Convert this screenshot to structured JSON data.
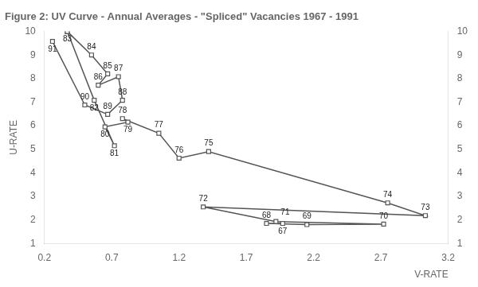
{
  "chart_data": {
    "type": "line",
    "title": "Figure 2: UV Curve - Annual Averages - \"Spliced\" Vacancies 1967 - 1991",
    "ylabel": "U-RATE",
    "xlabel": "V-RATE",
    "xlim": [
      0.2,
      3.2
    ],
    "xticks": [
      0.2,
      0.7,
      1.2,
      1.7,
      2.2,
      2.7,
      3.2
    ],
    "ylim": [
      1,
      10
    ],
    "yticks": [
      1,
      2,
      3,
      4,
      5,
      6,
      7,
      8,
      9,
      10
    ],
    "y2lim": [
      1,
      10
    ],
    "y2ticks": [
      1,
      2,
      3,
      4,
      5,
      6,
      7,
      8,
      9,
      10
    ],
    "grid": false,
    "marker": "square",
    "series": [
      {
        "color": "#555555",
        "x": [
          1.97,
          1.85,
          2.15,
          2.72,
          1.92,
          1.38,
          3.03,
          2.75,
          1.42,
          1.2,
          1.05,
          0.78,
          0.82,
          0.65,
          0.72,
          0.57,
          0.37
        ],
        "values": [
          1.85,
          1.85,
          1.8,
          1.82,
          1.93,
          2.55,
          2.18,
          2.72,
          4.9,
          4.62,
          5.68,
          6.3,
          6.15,
          5.95,
          5.15,
          7.08,
          10.0
        ]
      },
      {
        "color": "#555555",
        "x": [
          0.37,
          0.55,
          0.67,
          0.6,
          0.75,
          0.78,
          0.67,
          0.5,
          0.26
        ],
        "values": [
          10.0,
          9.0,
          8.2,
          7.72,
          8.08,
          7.08,
          6.48,
          6.88,
          9.58
        ]
      }
    ],
    "annotations": [
      {
        "text": "67",
        "x": 1.97,
        "y": 1.85
      },
      {
        "text": "68",
        "x": 1.85,
        "y": 1.85
      },
      {
        "text": "69",
        "x": 2.15,
        "y": 1.8
      },
      {
        "text": "70",
        "x": 2.72,
        "y": 1.82
      },
      {
        "text": "71",
        "x": 1.92,
        "y": 1.93
      },
      {
        "text": "72",
        "x": 1.38,
        "y": 2.55
      },
      {
        "text": "73",
        "x": 3.03,
        "y": 2.18
      },
      {
        "text": "74",
        "x": 2.75,
        "y": 2.72
      },
      {
        "text": "75",
        "x": 1.42,
        "y": 4.9
      },
      {
        "text": "76",
        "x": 1.2,
        "y": 4.62
      },
      {
        "text": "77",
        "x": 1.05,
        "y": 5.68
      },
      {
        "text": "78",
        "x": 0.78,
        "y": 6.3
      },
      {
        "text": "79",
        "x": 0.82,
        "y": 6.15
      },
      {
        "text": "80",
        "x": 0.65,
        "y": 5.95
      },
      {
        "text": "81",
        "x": 0.72,
        "y": 5.15
      },
      {
        "text": "82",
        "x": 0.57,
        "y": 7.08
      },
      {
        "text": "83",
        "x": 0.37,
        "y": 10.0
      },
      {
        "text": "84",
        "x": 0.55,
        "y": 9.0
      },
      {
        "text": "85",
        "x": 0.67,
        "y": 8.2
      },
      {
        "text": "86",
        "x": 0.6,
        "y": 7.72
      },
      {
        "text": "87",
        "x": 0.75,
        "y": 8.08
      },
      {
        "text": "88",
        "x": 0.78,
        "y": 7.08
      },
      {
        "text": "89",
        "x": 0.67,
        "y": 6.48
      },
      {
        "text": "90",
        "x": 0.5,
        "y": 6.88
      },
      {
        "text": "91",
        "x": 0.26,
        "y": 9.58
      }
    ]
  }
}
